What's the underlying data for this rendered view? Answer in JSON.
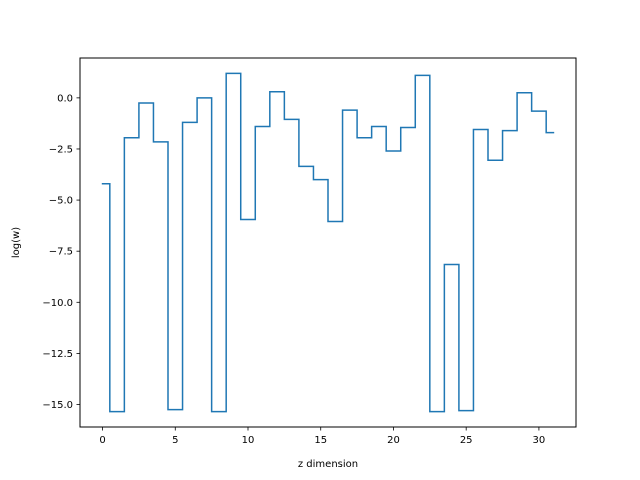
{
  "chart_data": {
    "type": "line",
    "drawstyle": "steps-mid",
    "title": "",
    "xlabel": "z dimension",
    "ylabel": "log(w)",
    "xlim": [
      -1.55,
      32.55
    ],
    "ylim": [
      -16.1,
      1.95
    ],
    "xticks": [
      0,
      5,
      10,
      15,
      20,
      25,
      30
    ],
    "xtick_labels": [
      "0",
      "5",
      "10",
      "15",
      "20",
      "25",
      "30"
    ],
    "yticks": [
      0.0,
      -2.5,
      -5.0,
      -7.5,
      -10.0,
      -12.5,
      -15.0
    ],
    "ytick_labels": [
      "0.0",
      "−2.5",
      "−5.0",
      "−7.5",
      "−10.0",
      "−12.5",
      "−15.0"
    ],
    "grid": false,
    "legend": "none",
    "line_color": "#1f77b4",
    "series": [
      {
        "x": [
          0,
          1,
          2,
          3,
          4,
          5,
          6,
          7,
          8,
          9,
          10,
          11,
          12,
          13,
          14,
          15,
          16,
          17,
          18,
          19,
          20,
          21,
          22,
          23,
          24,
          25,
          26,
          27,
          28,
          29,
          30,
          31
        ],
        "values": [
          -4.2,
          -15.35,
          -1.95,
          -0.25,
          -2.15,
          -15.25,
          -1.2,
          0.0,
          -15.35,
          1.2,
          -5.95,
          -1.4,
          0.3,
          -1.05,
          -3.35,
          -4.0,
          -6.05,
          -0.6,
          -1.95,
          -1.4,
          -2.6,
          -1.45,
          1.1,
          -15.35,
          -8.15,
          -15.3,
          -1.55,
          -3.05,
          -1.6,
          0.25,
          -0.65,
          -1.7
        ]
      }
    ]
  }
}
